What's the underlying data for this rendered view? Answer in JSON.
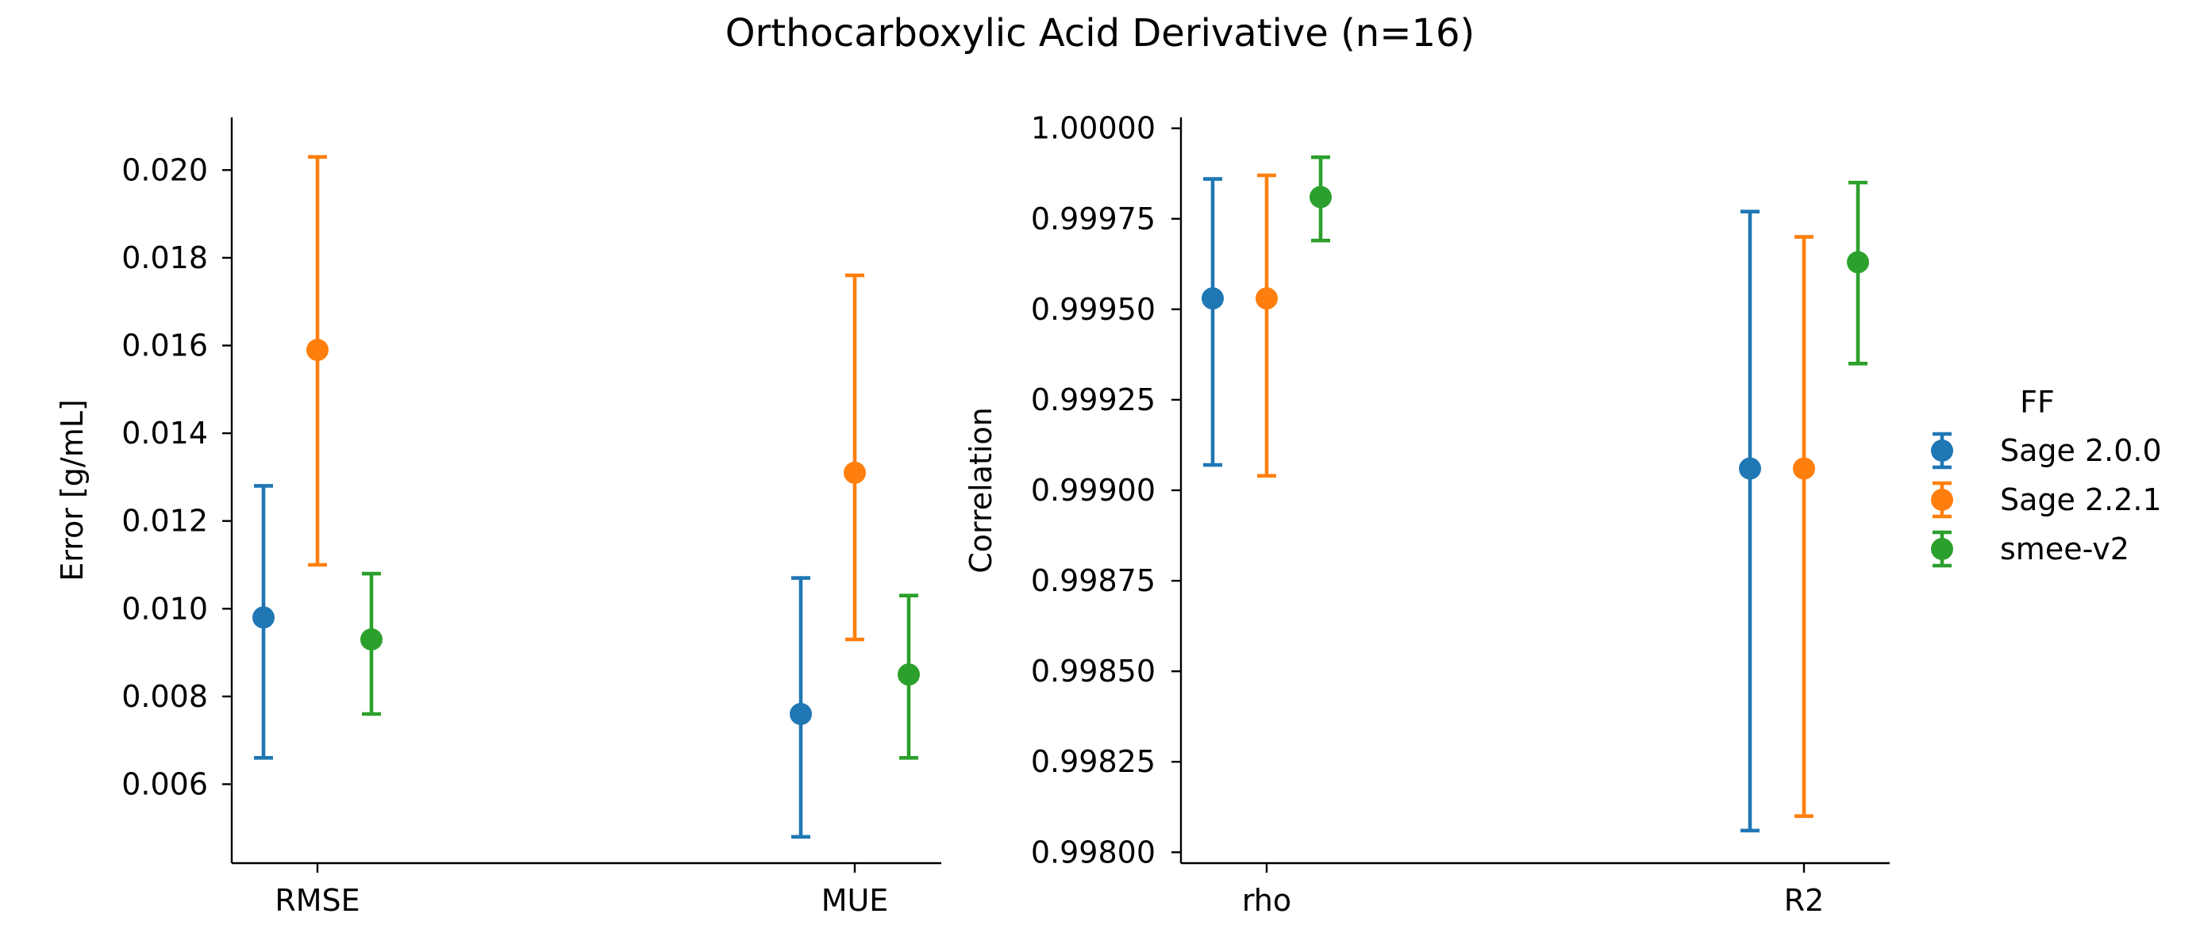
{
  "title": "Orthocarboxylic Acid Derivative (n=16)",
  "legend": {
    "title": "FF",
    "entries": [
      {
        "name": "Sage 2.0.0",
        "color": "#1f77b4"
      },
      {
        "name": "Sage 2.2.1",
        "color": "#ff7f0e"
      },
      {
        "name": "smee-v2",
        "color": "#2ca02c"
      }
    ]
  },
  "chart_data": [
    {
      "type": "scatter",
      "ylabel": "Error [g/mL]",
      "xlabel": "",
      "categories": [
        "RMSE",
        "MUE"
      ],
      "ylim": [
        0.0042,
        0.0212
      ],
      "yticks": [
        0.006,
        0.008,
        0.01,
        0.012,
        0.014,
        0.016,
        0.018,
        0.02
      ],
      "ytick_labels": [
        "0.006",
        "0.008",
        "0.010",
        "0.012",
        "0.014",
        "0.016",
        "0.018",
        "0.020"
      ],
      "series": [
        {
          "name": "Sage 2.0.0",
          "values": [
            0.0098,
            0.0076
          ],
          "lower": [
            0.0066,
            0.0048
          ],
          "upper": [
            0.0128,
            0.0107
          ]
        },
        {
          "name": "Sage 2.2.1",
          "values": [
            0.0159,
            0.0131
          ],
          "lower": [
            0.011,
            0.0093
          ],
          "upper": [
            0.0203,
            0.0176
          ]
        },
        {
          "name": "smee-v2",
          "values": [
            0.0093,
            0.0085
          ],
          "lower": [
            0.0076,
            0.0066
          ],
          "upper": [
            0.0108,
            0.0103
          ]
        }
      ]
    },
    {
      "type": "scatter",
      "ylabel": "Correlation",
      "xlabel": "",
      "categories": [
        "rho",
        "R2"
      ],
      "ylim": [
        0.99797,
        1.00003
      ],
      "yticks": [
        0.998,
        0.99825,
        0.9985,
        0.99875,
        0.999,
        0.99925,
        0.9995,
        0.99975,
        1.0
      ],
      "ytick_labels": [
        "0.99800",
        "0.99825",
        "0.99850",
        "0.99875",
        "0.99900",
        "0.99925",
        "0.99950",
        "0.99975",
        "1.00000"
      ],
      "series": [
        {
          "name": "Sage 2.0.0",
          "values": [
            0.99953,
            0.99906
          ],
          "lower": [
            0.99907,
            0.99806
          ],
          "upper": [
            0.99986,
            0.99977
          ]
        },
        {
          "name": "Sage 2.2.1",
          "values": [
            0.99953,
            0.99906
          ],
          "lower": [
            0.99904,
            0.9981
          ],
          "upper": [
            0.99987,
            0.9997
          ]
        },
        {
          "name": "smee-v2",
          "values": [
            0.99981,
            0.99963
          ],
          "lower": [
            0.99969,
            0.99935
          ],
          "upper": [
            0.99992,
            0.99985
          ]
        }
      ]
    }
  ]
}
